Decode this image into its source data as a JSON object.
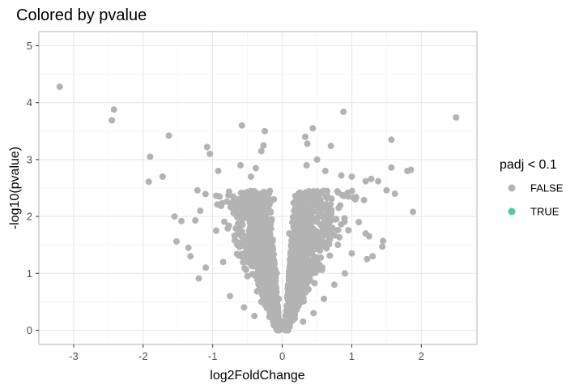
{
  "chart_data": {
    "type": "scatter",
    "title": "Colored by pvalue",
    "xlabel": "log2FoldChange",
    "ylabel": "-log10(pvalue)",
    "xlim": [
      -3.5,
      2.8
    ],
    "ylim": [
      -0.25,
      5.25
    ],
    "x_ticks": [
      -3,
      -2,
      -1,
      0,
      1,
      2
    ],
    "y_ticks": [
      0,
      1,
      2,
      3,
      4,
      5
    ],
    "x_tick_labels": [
      "-3",
      "-2",
      "-1",
      "0",
      "1",
      "2"
    ],
    "y_tick_labels": [
      "0",
      "1",
      "2",
      "3",
      "4",
      "5"
    ],
    "grid": true,
    "legend": {
      "title": "padj < 0.1",
      "position": "right",
      "entries": [
        {
          "label": "FALSE",
          "color": "#b3b3b3"
        },
        {
          "label": "TRUE",
          "color": "#4fc9a6"
        }
      ]
    },
    "series": [
      {
        "name": "FALSE",
        "color": "#b3b3b3",
        "points": [
          [
            -3.2,
            4.28
          ],
          [
            -2.42,
            3.88
          ],
          [
            -2.45,
            3.69
          ],
          [
            -1.9,
            3.05
          ],
          [
            -1.92,
            2.61
          ],
          [
            -1.72,
            2.7
          ],
          [
            -1.63,
            3.42
          ],
          [
            -1.55,
            2.0
          ],
          [
            -1.52,
            1.56
          ],
          [
            -1.45,
            1.92
          ],
          [
            -1.35,
            1.45
          ],
          [
            -1.32,
            1.3
          ],
          [
            -1.25,
            1.93
          ],
          [
            -1.22,
            2.46
          ],
          [
            -1.18,
            2.1
          ],
          [
            -1.2,
            0.91
          ],
          [
            -1.08,
            3.22
          ],
          [
            -1.04,
            3.1
          ],
          [
            -0.92,
            2.8
          ],
          [
            -0.58,
            3.6
          ],
          [
            -0.6,
            2.9
          ],
          [
            -0.25,
            3.5
          ],
          [
            -0.27,
            3.25
          ],
          [
            -0.3,
            3.15
          ],
          [
            -0.38,
            2.85
          ],
          [
            -0.45,
            2.7
          ],
          [
            -0.9,
            2.35
          ],
          [
            -0.7,
            2.3
          ],
          [
            -0.95,
            1.75
          ],
          [
            -0.85,
            1.2
          ],
          [
            -1.1,
            1.1
          ],
          [
            -0.75,
            0.6
          ],
          [
            -0.55,
            0.4
          ],
          [
            -0.4,
            0.25
          ],
          [
            -0.3,
            0.5
          ],
          [
            -0.5,
            0.95
          ],
          [
            -0.65,
            1.55
          ],
          [
            -0.2,
            1.85
          ],
          [
            -0.12,
            2.3
          ],
          [
            -0.15,
            1.45
          ],
          [
            -0.08,
            1.0
          ],
          [
            -0.05,
            0.55
          ],
          [
            -0.02,
            0.15
          ],
          [
            0.0,
            0.05
          ],
          [
            0.02,
            0.08
          ],
          [
            0.36,
            3.28
          ],
          [
            0.33,
            3.4
          ],
          [
            0.44,
            3.55
          ],
          [
            0.88,
            3.84
          ],
          [
            0.7,
            3.24
          ],
          [
            0.5,
            3.0
          ],
          [
            0.35,
            2.9
          ],
          [
            0.62,
            2.8
          ],
          [
            0.85,
            2.72
          ],
          [
            1.0,
            2.7
          ],
          [
            1.2,
            2.62
          ],
          [
            1.28,
            2.66
          ],
          [
            1.38,
            2.62
          ],
          [
            1.57,
            3.35
          ],
          [
            1.57,
            2.86
          ],
          [
            1.5,
            2.46
          ],
          [
            1.62,
            2.4
          ],
          [
            1.8,
            2.8
          ],
          [
            1.85,
            2.82
          ],
          [
            1.88,
            2.08
          ],
          [
            2.5,
            3.74
          ],
          [
            1.45,
            1.57
          ],
          [
            1.44,
            1.47
          ],
          [
            1.3,
            1.3
          ],
          [
            1.22,
            1.25
          ],
          [
            1.25,
            1.65
          ],
          [
            1.2,
            1.7
          ],
          [
            1.05,
            2.3
          ],
          [
            0.95,
            2.35
          ],
          [
            0.6,
            2.45
          ],
          [
            0.55,
            2.3
          ],
          [
            1.0,
            1.35
          ],
          [
            0.9,
            1.0
          ],
          [
            0.75,
            0.8
          ],
          [
            0.6,
            0.55
          ],
          [
            0.45,
            0.3
          ],
          [
            0.3,
            0.15
          ],
          [
            0.7,
            1.8
          ],
          [
            0.4,
            1.6
          ],
          [
            0.25,
            1.25
          ],
          [
            0.15,
            0.8
          ],
          [
            0.1,
            0.45
          ],
          [
            0.05,
            0.25
          ],
          [
            0.5,
            1.05
          ],
          [
            0.8,
            1.5
          ],
          [
            0.2,
            2.0
          ],
          [
            0.1,
            1.7
          ],
          [
            -0.35,
            1.2
          ],
          [
            -0.45,
            2.05
          ],
          [
            1.1,
            1.9
          ]
        ]
      },
      {
        "name": "TRUE",
        "color": "#4fc9a6",
        "points": []
      }
    ]
  }
}
